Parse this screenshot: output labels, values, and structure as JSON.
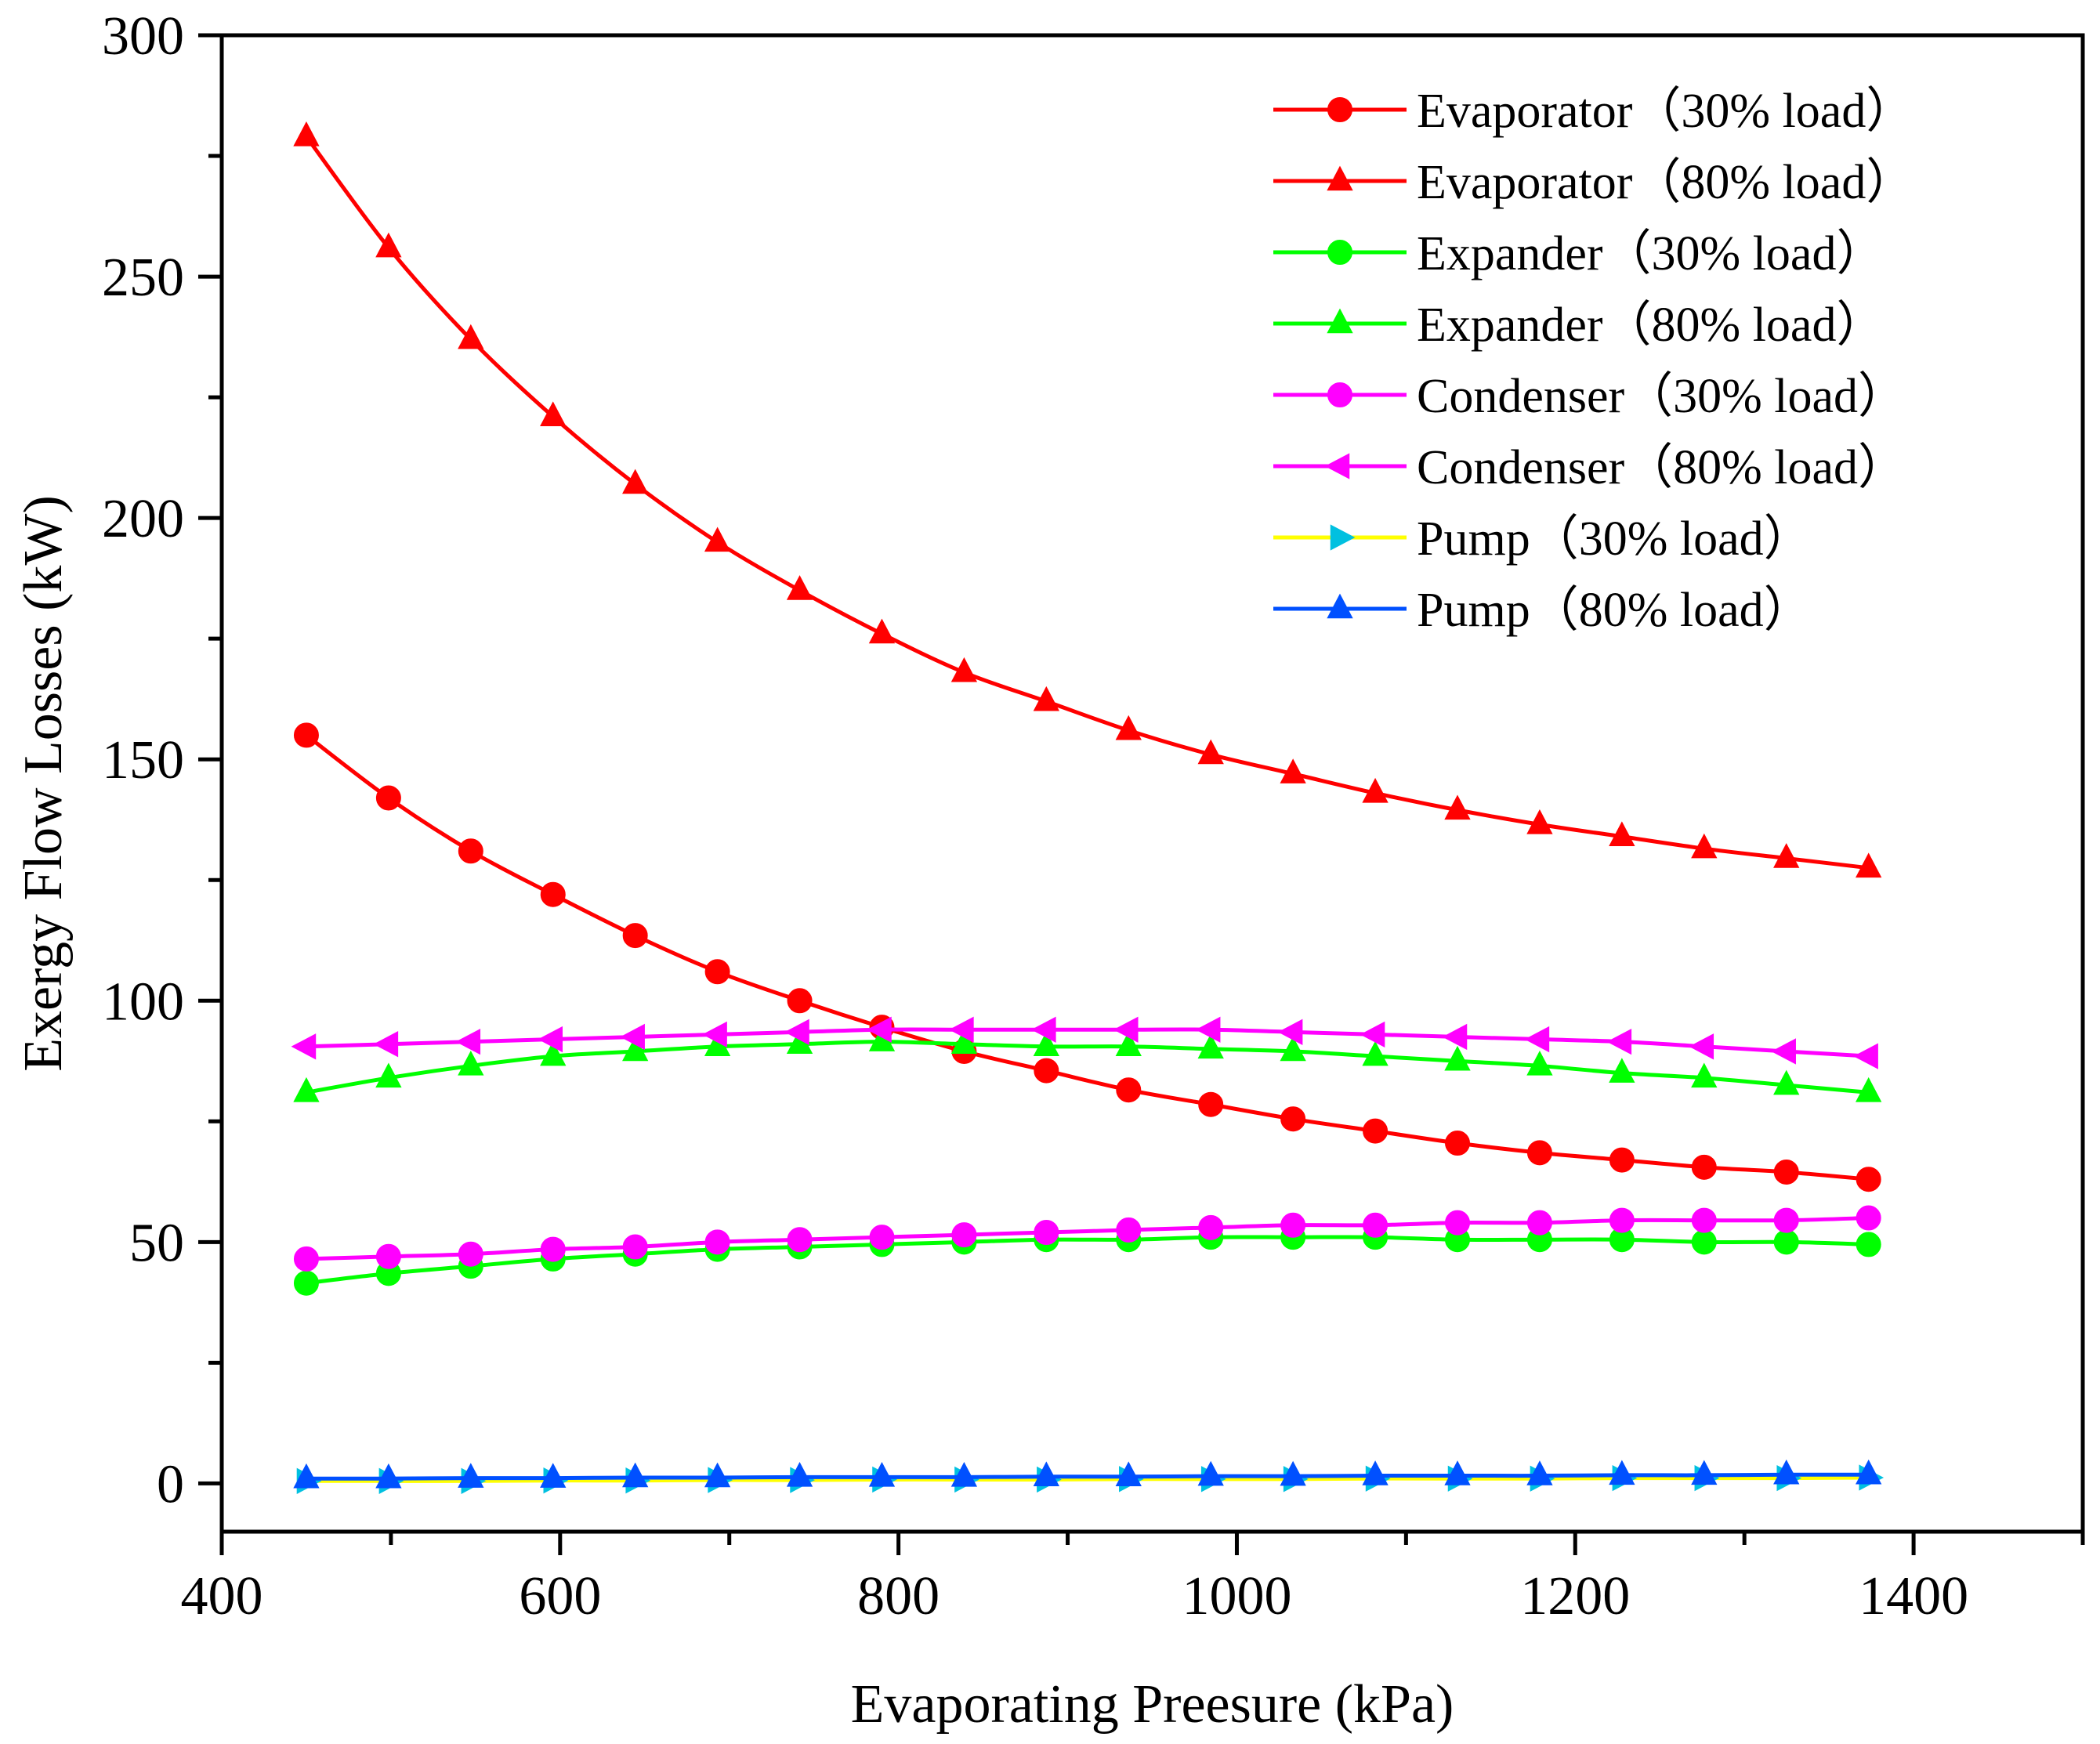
{
  "chart_data": {
    "type": "line",
    "title": "",
    "xlabel": "Evaporating Preesure (kPa)",
    "ylabel": "Exergy Flow Losses (kW)",
    "xlim": [
      400,
      1500
    ],
    "ylim": [
      -10,
      300
    ],
    "xticks": [
      400,
      600,
      800,
      1000,
      1200,
      1400
    ],
    "yticks": [
      0,
      50,
      100,
      150,
      200,
      250,
      300
    ],
    "xminor": [
      500,
      700,
      900,
      1100,
      1300,
      1500
    ],
    "yminor": [
      25,
      75,
      125,
      175,
      225,
      275
    ],
    "grid": false,
    "legend_position": "top-right",
    "x": [
      450,
      500,
      550,
      600,
      650,
      700,
      750,
      800,
      850,
      900,
      950,
      1000,
      1050,
      1100,
      1150,
      1200,
      1250,
      1300,
      1350,
      1400,
      1450
    ],
    "series": [
      {
        "name": "Evaporator（30% load）",
        "color": "#ff0000",
        "marker": "circle",
        "values": [
          155,
          142,
          131,
          122,
          113.5,
          106,
          100,
          94.5,
          89.5,
          85.5,
          81.5,
          78.5,
          75.5,
          73,
          70.5,
          68.5,
          67,
          65.5,
          64.5,
          63,
          null
        ]
      },
      {
        "name": "Evaporator（80% load）",
        "color": "#ff0000",
        "marker": "triangle-up",
        "values": [
          279,
          256,
          237,
          221,
          207,
          195,
          185,
          176,
          168,
          162,
          156,
          151,
          147,
          143,
          139.5,
          136.5,
          134,
          131.5,
          129.5,
          127.5,
          null
        ]
      },
      {
        "name": "Expander（30% load）",
        "color": "#00ff00",
        "marker": "circle",
        "values": [
          41.5,
          43.5,
          45,
          46.5,
          47.5,
          48.5,
          49,
          49.5,
          50,
          50.5,
          50.5,
          51,
          51,
          51,
          50.5,
          50.5,
          50.5,
          50,
          50,
          49.5,
          null
        ]
      },
      {
        "name": "Expander（80% load）",
        "color": "#00ff00",
        "marker": "triangle-up",
        "values": [
          81,
          84,
          86.5,
          88.5,
          89.5,
          90.5,
          91,
          91.5,
          91,
          90.5,
          90.5,
          90,
          89.5,
          88.5,
          87.5,
          86.5,
          85,
          84,
          82.5,
          81,
          null
        ]
      },
      {
        "name": "Condenser（30% load）",
        "color": "#ff00ff",
        "marker": "circle",
        "values": [
          46.5,
          47,
          47.5,
          48.5,
          49,
          50,
          50.5,
          51,
          51.5,
          52,
          52.5,
          53,
          53.5,
          53.5,
          54,
          54,
          54.5,
          54.5,
          54.5,
          55,
          null
        ]
      },
      {
        "name": "Condenser（80% load）",
        "color": "#ff00ff",
        "marker": "triangle-left",
        "values": [
          90.5,
          91,
          91.5,
          92,
          92.5,
          93,
          93.5,
          94,
          94,
          94,
          94,
          94,
          93.5,
          93,
          92.5,
          92,
          91.5,
          90.5,
          89.5,
          88.5,
          null
        ]
      },
      {
        "name": "Pump（30% load）",
        "color": "#ffff00",
        "marker": "triangle-right",
        "markerColor": "#00c0e0",
        "values": [
          0.5,
          0.5,
          0.5,
          0.6,
          0.6,
          0.7,
          0.7,
          0.8,
          0.8,
          0.8,
          0.9,
          0.9,
          0.9,
          1.0,
          1.0,
          1.0,
          1.1,
          1.1,
          1.1,
          1.2,
          null
        ]
      },
      {
        "name": "Pump（80% load）",
        "color": "#0050ff",
        "marker": "triangle-up",
        "values": [
          1.0,
          1.0,
          1.1,
          1.1,
          1.2,
          1.2,
          1.3,
          1.3,
          1.3,
          1.4,
          1.4,
          1.5,
          1.5,
          1.6,
          1.6,
          1.6,
          1.7,
          1.7,
          1.8,
          1.8,
          null
        ]
      }
    ]
  }
}
